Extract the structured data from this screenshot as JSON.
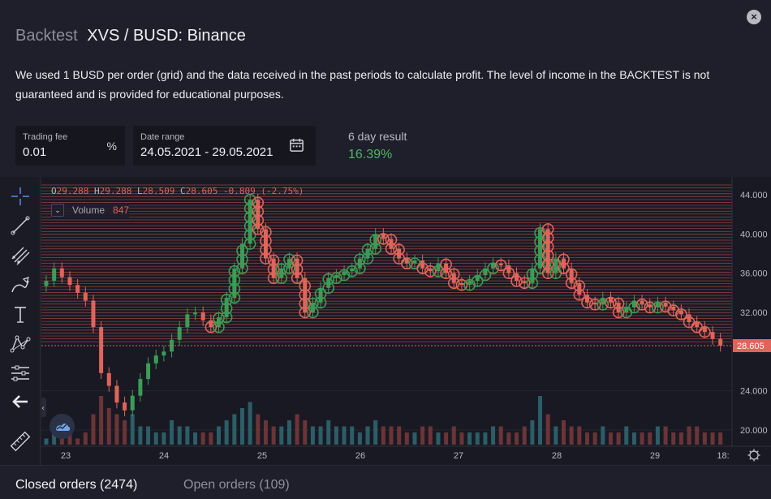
{
  "header": {
    "title_prefix": "Backtest",
    "title_pair": "XVS / BUSD: Binance",
    "close_label": "×"
  },
  "description": "We used 1 BUSD per order (grid) and the data received in the past periods to calculate profit. The level of income in the BACKTEST is not guaranteed and is provided for educational purposes.",
  "inputs": {
    "trading_fee": {
      "label": "Trading fee",
      "value": "0.01",
      "unit": "%"
    },
    "date_range": {
      "label": "Date range",
      "value": "24.05.2021 - 29.05.2021"
    }
  },
  "result": {
    "label": "6 day result",
    "value": "16.39%"
  },
  "colors": {
    "up": "#3b9d55",
    "down": "#e0645a",
    "grid_line": "#c3514b",
    "result": "#4fb566"
  },
  "toolbar": {
    "icons": [
      "crosshair-icon",
      "trend-line-icon",
      "fib-tool-icon",
      "brush-icon",
      "text-tool-icon",
      "pattern-icon",
      "measure-tool-icon",
      "back-arrow-icon",
      "ruler-icon"
    ]
  },
  "chart_data": {
    "type": "candlestick",
    "ohlc_legend": {
      "o_label": "O",
      "o": "29.288",
      "h_label": "H",
      "h": "29.288",
      "l_label": "L",
      "l": "28.509",
      "c_label": "C",
      "c": "28.605",
      "change": "-0.809 (-2.75%)"
    },
    "volume_legend": {
      "label": "Volume",
      "value": "847"
    },
    "y_ticks": [
      "44.000",
      "40.000",
      "36.000",
      "32.000",
      "28.605",
      "24.000",
      "20.000"
    ],
    "y_tick_values": [
      44,
      40,
      36,
      32,
      28.605,
      24,
      20
    ],
    "x_ticks": [
      "23",
      "24",
      "25",
      "26",
      "27",
      "28",
      "29",
      "18:"
    ],
    "ylim": [
      18.5,
      45.5
    ],
    "current_price": 28.605,
    "grid_levels": {
      "min": 29.0,
      "max": 45.0,
      "count": 55
    },
    "close_series": [
      35.2,
      36.5,
      35.6,
      34.8,
      34.0,
      33.2,
      30.5,
      25.8,
      24.5,
      22.8,
      22.0,
      23.5,
      25.2,
      26.8,
      27.6,
      28.0,
      29.2,
      30.5,
      31.8,
      32.0,
      31.2,
      30.5,
      31.5,
      33.5,
      36.5,
      39.0,
      43.5,
      40.5,
      37.5,
      35.5,
      36.5,
      37.5,
      35.5,
      32.0,
      33.0,
      34.5,
      35.5,
      35.8,
      36.2,
      36.5,
      37.5,
      38.5,
      40.0,
      39.5,
      38.5,
      37.5,
      37.0,
      37.3,
      36.5,
      36.2,
      37.0,
      36.0,
      35.0,
      34.8,
      35.2,
      35.8,
      36.5,
      37.0,
      36.8,
      36.0,
      35.2,
      35.0,
      36.5,
      40.5,
      36.0,
      37.5,
      36.5,
      35.0,
      33.8,
      33.0,
      32.8,
      33.5,
      33.0,
      32.0,
      32.5,
      33.2,
      32.8,
      32.5,
      33.0,
      32.6,
      32.2,
      31.8,
      31.0,
      30.5,
      30.0,
      29.3,
      28.6
    ],
    "volume_series": [
      1,
      3,
      2,
      2,
      1,
      2,
      5,
      8,
      6,
      5,
      4,
      5,
      3,
      3,
      2,
      2,
      4,
      3,
      3,
      2,
      2,
      2,
      3,
      4,
      5,
      6,
      7,
      5,
      4,
      3,
      3,
      4,
      5,
      4,
      3,
      3,
      4,
      3,
      3,
      3,
      2,
      3,
      4,
      3,
      3,
      3,
      2,
      2,
      3,
      3,
      2,
      2,
      3,
      2,
      2,
      2,
      2,
      3,
      3,
      2,
      2,
      3,
      4,
      8,
      5,
      3,
      4,
      3,
      3,
      2,
      2,
      3,
      2,
      2,
      3,
      2,
      2,
      2,
      3,
      3,
      2,
      2,
      3,
      3,
      2,
      2,
      2
    ]
  },
  "bottom_tabs": {
    "closed": "Closed orders (2474)",
    "open": "Open orders (109)"
  }
}
